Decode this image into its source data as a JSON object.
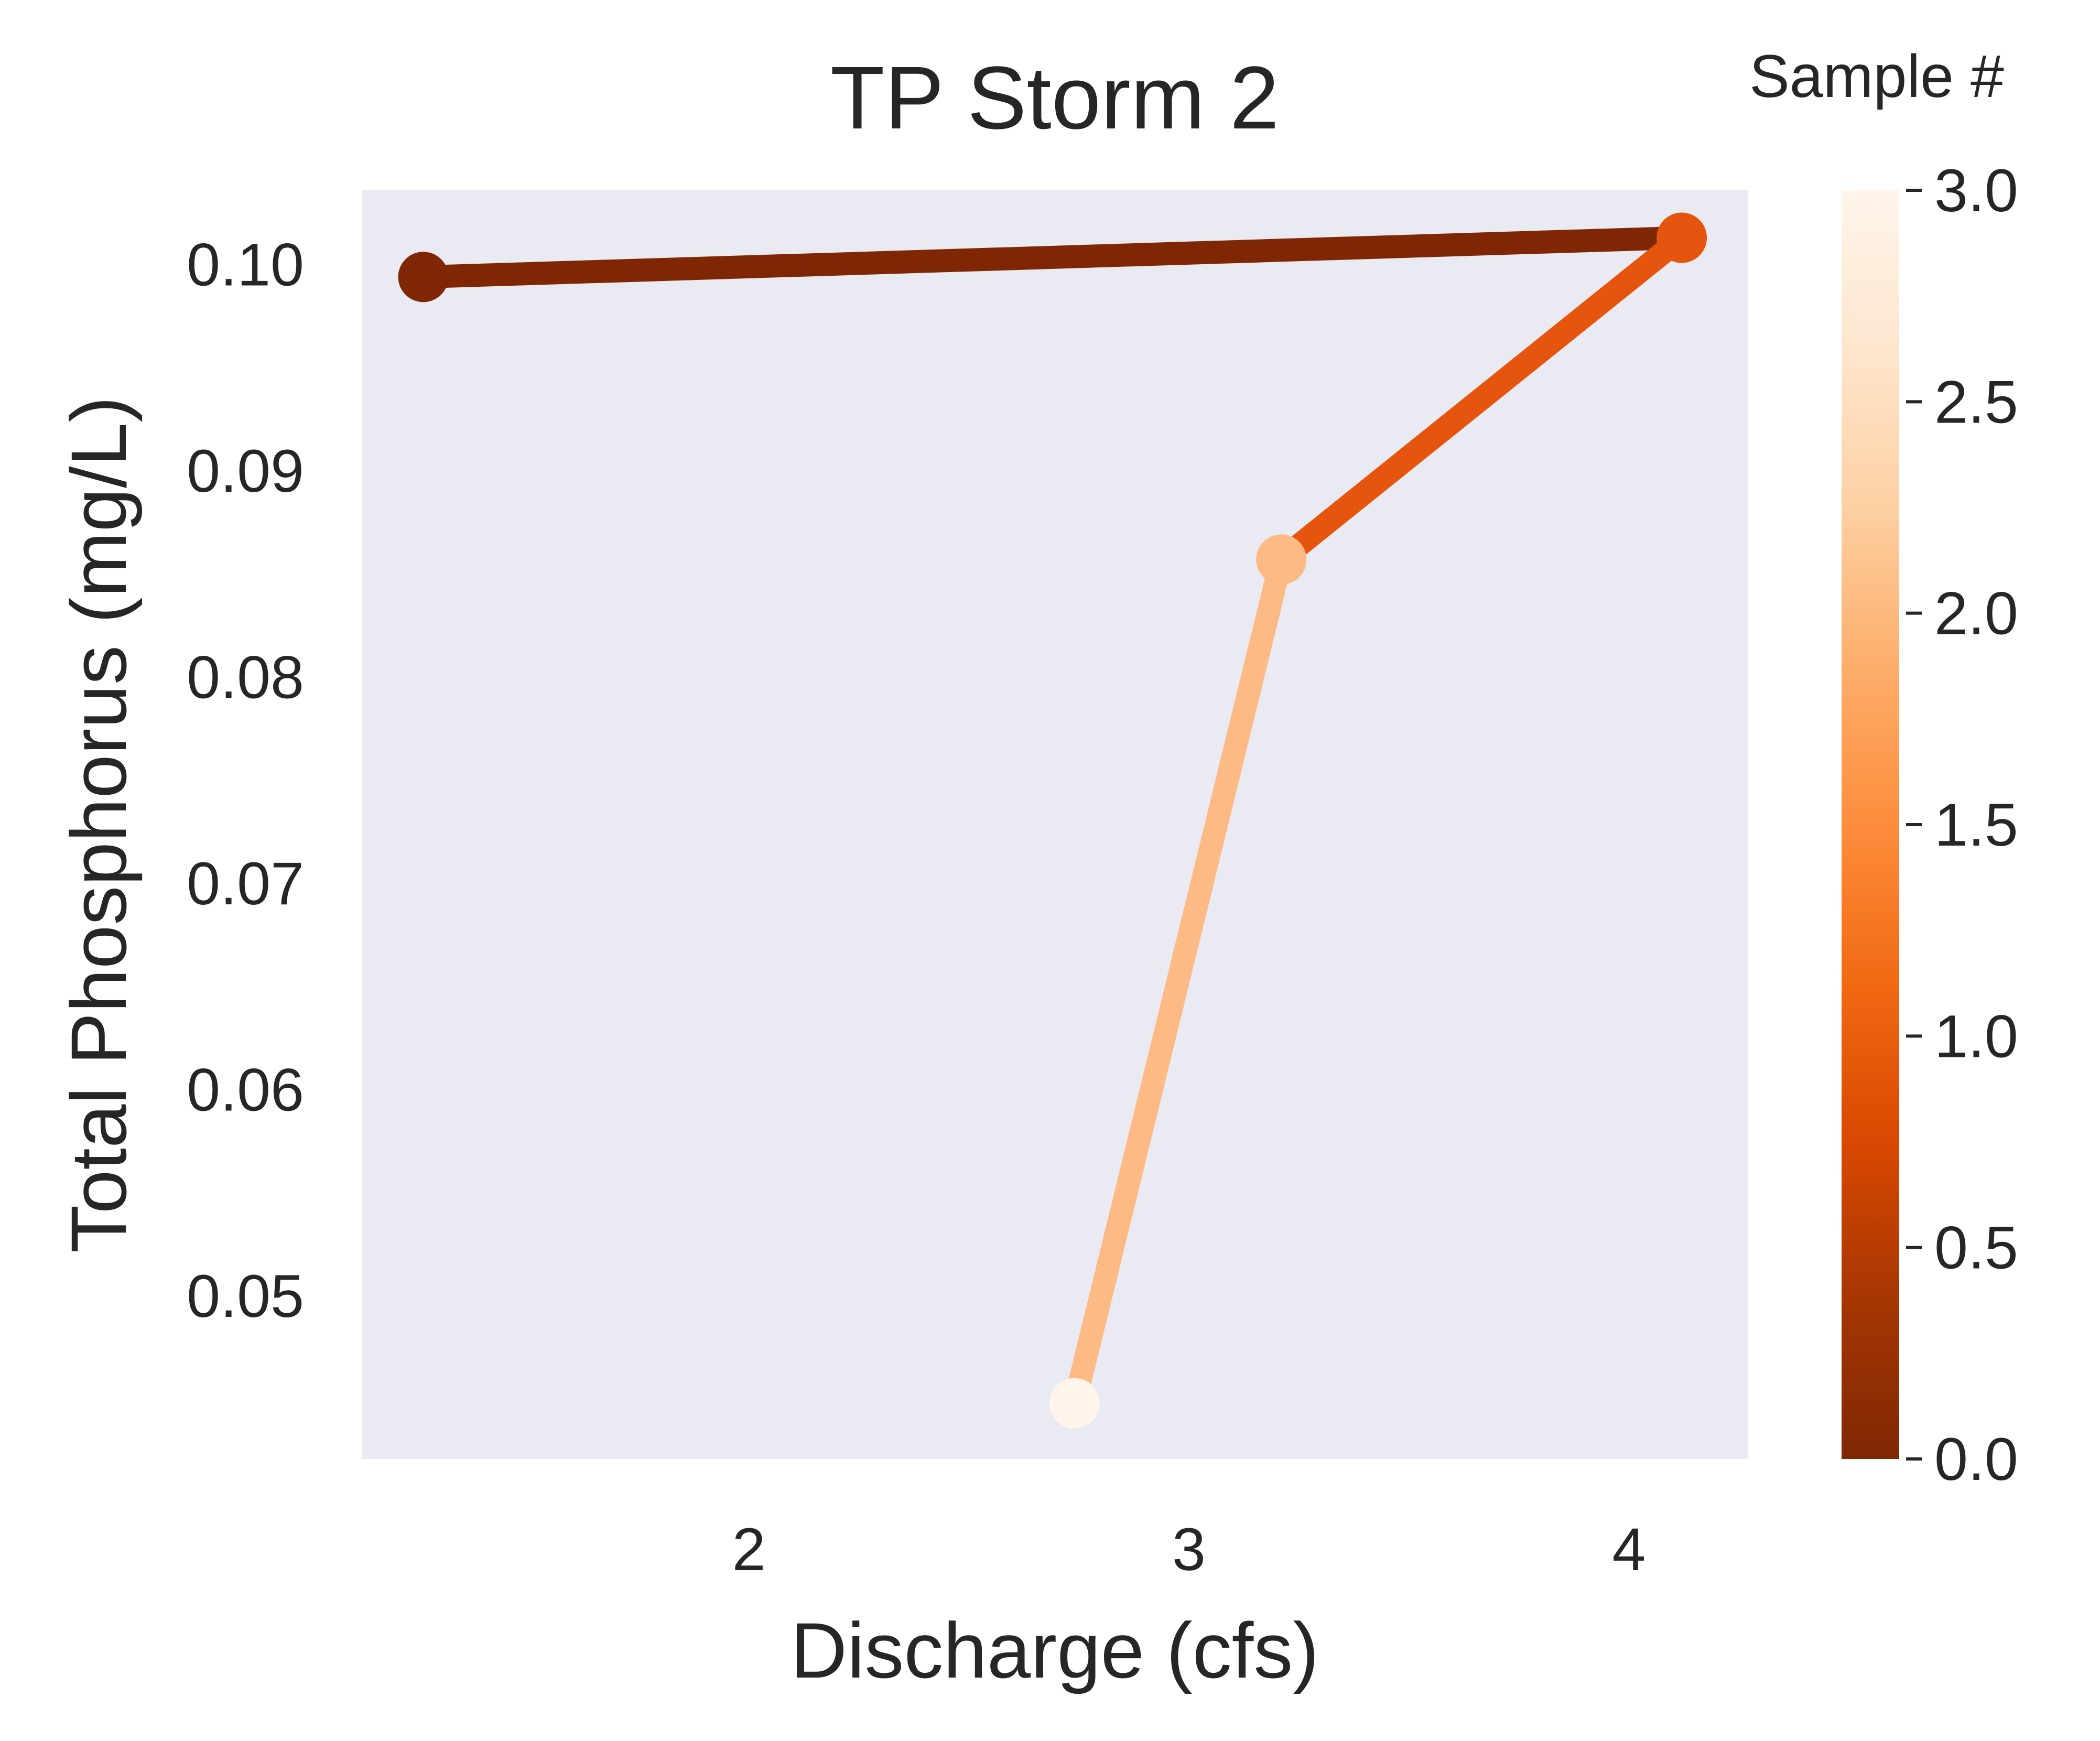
{
  "chart_data": {
    "type": "line",
    "title": "TP Storm 2",
    "xlabel": "Discharge (cfs)",
    "ylabel": "Total Phosphorus (mg/L)",
    "xlim": [
      1.12,
      4.27
    ],
    "ylim": [
      0.0421,
      0.1036
    ],
    "x_ticks": [
      2,
      3,
      4
    ],
    "y_ticks": [
      0.05,
      0.06,
      0.07,
      0.08,
      0.09,
      0.1
    ],
    "y_tick_labels": [
      "0.05",
      "0.06",
      "0.07",
      "0.08",
      "0.09",
      "0.10"
    ],
    "grid": false,
    "plot_background": "#eaeaf2",
    "points": [
      {
        "sample": 0,
        "x": 1.26,
        "y": 0.0994,
        "color": "#7f2704"
      },
      {
        "sample": 1,
        "x": 4.12,
        "y": 0.1013,
        "color": "#e6550d"
      },
      {
        "sample": 2,
        "x": 3.21,
        "y": 0.0857,
        "color": "#fdba85"
      },
      {
        "sample": 3,
        "x": 2.74,
        "y": 0.0448,
        "color": "#fff5eb"
      }
    ],
    "colorbar": {
      "label": "Sample #",
      "range": [
        0.0,
        3.0
      ],
      "ticks": [
        0.0,
        0.5,
        1.0,
        1.5,
        2.0,
        2.5,
        3.0
      ],
      "tick_labels": [
        "0.0",
        "0.5",
        "1.0",
        "1.5",
        "2.0",
        "2.5",
        "3.0"
      ],
      "colors": [
        "#7f2704",
        "#a63603",
        "#d94801",
        "#f16913",
        "#fd8d3c",
        "#fdae6b",
        "#fdd0a2",
        "#fee6ce",
        "#fff5eb"
      ]
    }
  }
}
